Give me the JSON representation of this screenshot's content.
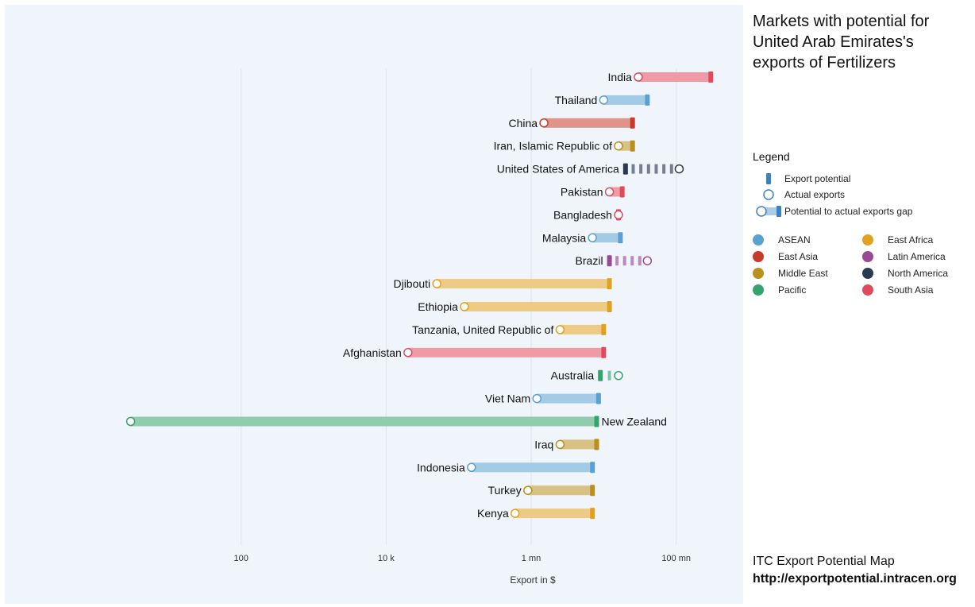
{
  "title_lines": [
    "Markets with potential for",
    "United Arab Emirates's",
    "exports of Fertilizers"
  ],
  "legend": {
    "heading": "Legend",
    "export_potential": "Export potential",
    "actual_exports": "Actual exports",
    "gap": "Potential to actual exports gap"
  },
  "regions": [
    {
      "name": "ASEAN",
      "color": "#5aa0d0"
    },
    {
      "name": "East Africa",
      "color": "#e0a020"
    },
    {
      "name": "East Asia",
      "color": "#c83a2a"
    },
    {
      "name": "Latin America",
      "color": "#9a4a94"
    },
    {
      "name": "Middle East",
      "color": "#b8901e"
    },
    {
      "name": "North America",
      "color": "#2a3a50"
    },
    {
      "name": "Pacific",
      "color": "#34a46c"
    },
    {
      "name": "South Asia",
      "color": "#e04a5e"
    }
  ],
  "footer": {
    "source": "ITC Export Potential Map",
    "url": "http://exportpotential.intracen.org"
  },
  "chart_data": {
    "type": "dumbbell",
    "xlabel": "Export in $",
    "xscale": "log",
    "xlim": [
      1,
      1000000000
    ],
    "xticks": [
      {
        "value": 100,
        "label": "100"
      },
      {
        "value": 10000,
        "label": "10 k"
      },
      {
        "value": 1000000,
        "label": "1 mn"
      },
      {
        "value": 100000000,
        "label": "100 mn"
      }
    ],
    "grid": true,
    "rows": [
      {
        "label": "India",
        "region": "South Asia",
        "potential": 300000000,
        "actual": 30000000
      },
      {
        "label": "Thailand",
        "region": "ASEAN",
        "potential": 40000000,
        "actual": 10000000
      },
      {
        "label": "China",
        "region": "East Asia",
        "potential": 25000000,
        "actual": 1500000
      },
      {
        "label": "Iran, Islamic Republic of",
        "region": "Middle East",
        "potential": 25000000,
        "actual": 16000000
      },
      {
        "label": "United States of America",
        "region": "North America",
        "potential": 20000000,
        "actual": 110000000
      },
      {
        "label": "Pakistan",
        "region": "South Asia",
        "potential": 18000000,
        "actual": 12000000
      },
      {
        "label": "Bangladesh",
        "region": "South Asia",
        "potential": 16000000,
        "actual": 16000000
      },
      {
        "label": "Malaysia",
        "region": "ASEAN",
        "potential": 17000000,
        "actual": 7000000
      },
      {
        "label": "Brazil",
        "region": "Latin America",
        "potential": 12000000,
        "actual": 40000000
      },
      {
        "label": "Djibouti",
        "region": "East Africa",
        "potential": 12000000,
        "actual": 50000
      },
      {
        "label": "Ethiopia",
        "region": "East Africa",
        "potential": 12000000,
        "actual": 120000
      },
      {
        "label": "Tanzania, United Republic of",
        "region": "East Africa",
        "potential": 10000000,
        "actual": 2500000
      },
      {
        "label": "Afghanistan",
        "region": "South Asia",
        "potential": 10000000,
        "actual": 20000
      },
      {
        "label": "Australia",
        "region": "Pacific",
        "potential": 9000000,
        "actual": 16000000
      },
      {
        "label": "Viet Nam",
        "region": "ASEAN",
        "potential": 8500000,
        "actual": 1200000
      },
      {
        "label": "New Zealand",
        "region": "Pacific",
        "potential": 8000000,
        "actual": 3
      },
      {
        "label": "Iraq",
        "region": "Middle East",
        "potential": 8000000,
        "actual": 2500000
      },
      {
        "label": "Indonesia",
        "region": "ASEAN",
        "potential": 7000000,
        "actual": 150000
      },
      {
        "label": "Turkey",
        "region": "Middle East",
        "potential": 7000000,
        "actual": 900000
      },
      {
        "label": "Kenya",
        "region": "East Africa",
        "potential": 7000000,
        "actual": 600000
      }
    ]
  }
}
